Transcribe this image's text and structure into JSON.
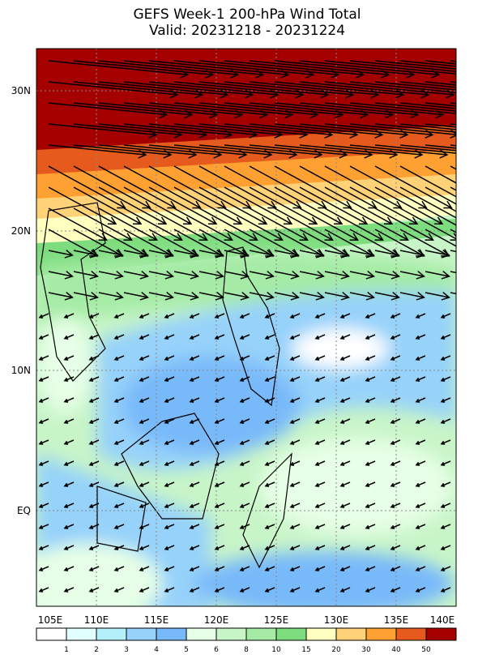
{
  "header": {
    "title": "GEFS Week-1 200-hPa Wind Total",
    "subtitle": "Valid: 20231218 - 20231224"
  },
  "axes": {
    "lon_labels": [
      "105E",
      "110E",
      "115E",
      "120E",
      "125E",
      "130E",
      "135E",
      "140E"
    ],
    "lat_labels": [
      "30N",
      "20N",
      "10N",
      "EQ"
    ]
  },
  "colorbar": {
    "labels": [
      "1",
      "2",
      "3",
      "4",
      "5",
      "6",
      "8",
      "10",
      "15",
      "20",
      "30",
      "40",
      "50"
    ],
    "colors": [
      "#ffffff",
      "#e1ffff",
      "#b4f0fa",
      "#96d2fa",
      "#78b9fa",
      "#e6ffe6",
      "#c8f5c8",
      "#a5eba5",
      "#7ddc7d",
      "#ffffc0",
      "#ffd278",
      "#ffa032",
      "#e65a1e",
      "#a50000"
    ]
  }
}
